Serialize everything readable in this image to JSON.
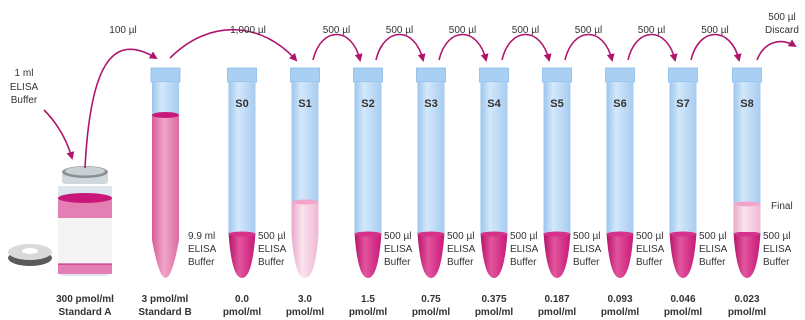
{
  "colors": {
    "arrow": "#b0156e",
    "liquid_dark": "#c8187a",
    "liquid_light": "#f4c2d9",
    "tube_blue": "#bcd9f5",
    "tube_blue_dark": "#9cc4ec",
    "cap": "#a9cff3",
    "text": "#333333"
  },
  "transfers": [
    "100 µl",
    "1,000 µl",
    "500 µl",
    "500 µl",
    "500 µl",
    "500 µl",
    "500 µl",
    "500 µl",
    "500 µl"
  ],
  "discard": {
    "amount": "500 µl",
    "label": "Discard"
  },
  "buffer_note": {
    "amount": "1 ml",
    "line2": "ELISA",
    "line3": "Buffer"
  },
  "vial": {
    "value": "300 pmol/ml",
    "name": "Standard A"
  },
  "stdB": {
    "value": "3 pmol/ml",
    "name": "Standard B",
    "buf1": "9.9 ml",
    "buf2": "ELISA",
    "buf3": "Buffer"
  },
  "tubes": [
    {
      "label": "S0",
      "conc": "0.0",
      "unit": "pmol/ml",
      "buf1": "500 µl",
      "buf2": "ELISA",
      "buf3": "Buffer"
    },
    {
      "label": "S1",
      "conc": "3.0",
      "unit": "pmol/ml",
      "buf1": "",
      "buf2": "",
      "buf3": ""
    },
    {
      "label": "S2",
      "conc": "1.5",
      "unit": "pmol/ml",
      "buf1": "500 µl",
      "buf2": "ELISA",
      "buf3": "Buffer"
    },
    {
      "label": "S3",
      "conc": "0.75",
      "unit": "pmol/ml",
      "buf1": "500 µl",
      "buf2": "ELISA",
      "buf3": "Buffer"
    },
    {
      "label": "S4",
      "conc": "0.375",
      "unit": "pmol/ml",
      "buf1": "500 µl",
      "buf2": "ELISA",
      "buf3": "Buffer"
    },
    {
      "label": "S5",
      "conc": "0.187",
      "unit": "pmol/ml",
      "buf1": "500 µl",
      "buf2": "ELISA",
      "buf3": "Buffer"
    },
    {
      "label": "S6",
      "conc": "0.093",
      "unit": "pmol/ml",
      "buf1": "500 µl",
      "buf2": "ELISA",
      "buf3": "Buffer"
    },
    {
      "label": "S7",
      "conc": "0.046",
      "unit": "pmol/ml",
      "buf1": "500 µl",
      "buf2": "ELISA",
      "buf3": "Buffer"
    },
    {
      "label": "S8",
      "conc": "0.023",
      "unit": "pmol/ml",
      "buf1": "500 µl",
      "buf2": "ELISA",
      "buf3": "Buffer"
    }
  ],
  "final_label": "Final"
}
